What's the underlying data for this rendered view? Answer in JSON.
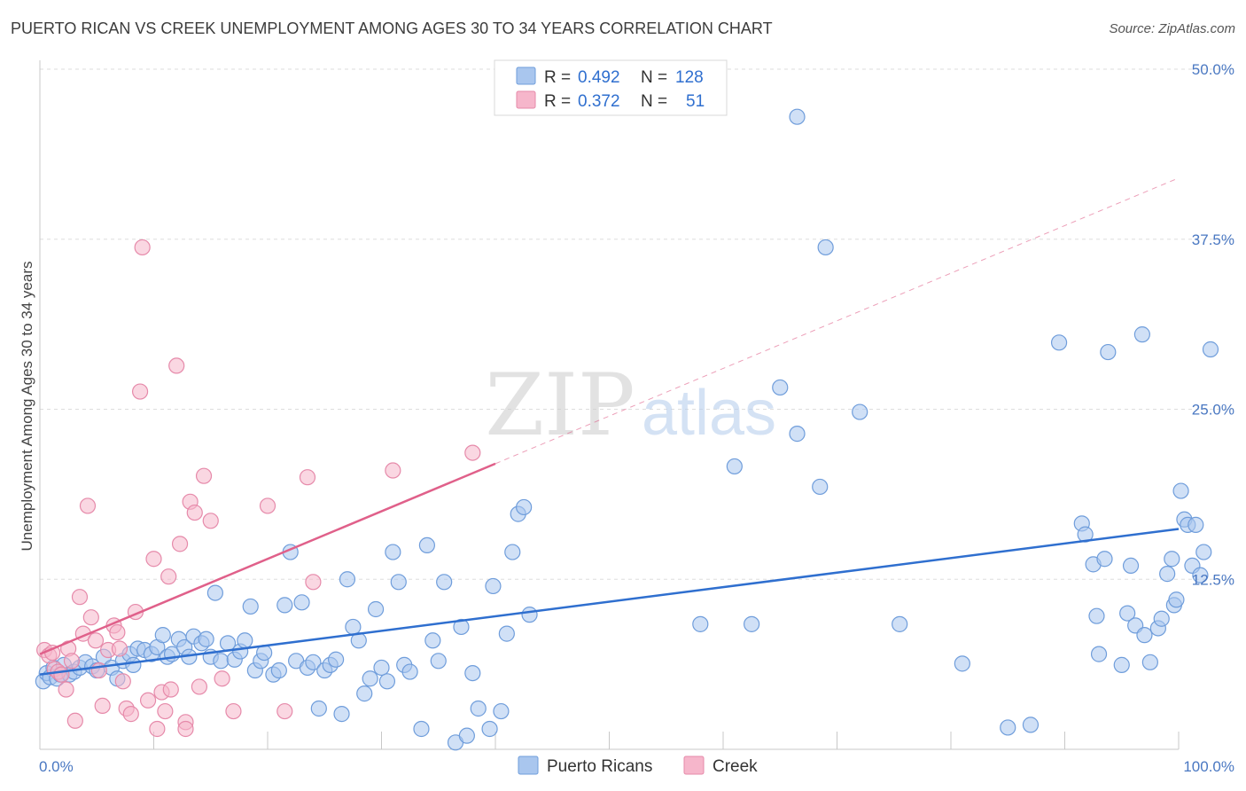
{
  "title": "PUERTO RICAN VS CREEK UNEMPLOYMENT AMONG AGES 30 TO 34 YEARS CORRELATION CHART",
  "source": "Source: ZipAtlas.com",
  "watermark": {
    "zip": "ZIP",
    "atlas": "atlas"
  },
  "colors": {
    "blue_fill": "#a9c6ee",
    "blue_stroke": "#6f9ddb",
    "blue_line": "#2f6fcf",
    "pink_fill": "#f6b6cb",
    "pink_stroke": "#e68aaa",
    "pink_line": "#e0608a",
    "axis_text": "#4a78c2",
    "grid": "#dddddd"
  },
  "chart_data": {
    "type": "scatter",
    "title": "PUERTO RICAN VS CREEK UNEMPLOYMENT AMONG AGES 30 TO 34 YEARS CORRELATION CHART",
    "xlabel": "",
    "ylabel": "Unemployment Among Ages 30 to 34 years",
    "xlim": [
      0,
      100
    ],
    "ylim": [
      0,
      50
    ],
    "x_tick_labels": [
      "0.0%",
      "100.0%"
    ],
    "y_ticks": [
      {
        "value": 50,
        "label": "50.0%"
      },
      {
        "value": 37.5,
        "label": "37.5%"
      },
      {
        "value": 25,
        "label": "25.0%"
      },
      {
        "value": 12.5,
        "label": "12.5%"
      }
    ],
    "grid": true,
    "legend": {
      "placement": "top-center",
      "entries": [
        {
          "r_label": "R =",
          "r": "0.492",
          "n_label": "N =",
          "n": "128"
        },
        {
          "r_label": "R =",
          "r": "0.372",
          "n_label": "N =",
          "n": "51"
        }
      ]
    },
    "bottom_legend": [
      "Puerto Ricans",
      "Creek"
    ],
    "series": [
      {
        "name": "Puerto Ricans",
        "color": "blue",
        "trend": {
          "x0": 0,
          "y0": 5.5,
          "x1": 100,
          "y1": 16.2
        },
        "points": [
          [
            0.3,
            5.0
          ],
          [
            0.6,
            5.6
          ],
          [
            0.9,
            5.3
          ],
          [
            1.2,
            6.0
          ],
          [
            1.5,
            5.2
          ],
          [
            1.8,
            5.5
          ],
          [
            2.1,
            6.2
          ],
          [
            2.6,
            5.5
          ],
          [
            3.0,
            5.7
          ],
          [
            3.5,
            6.0
          ],
          [
            4.0,
            6.4
          ],
          [
            4.6,
            6.1
          ],
          [
            5.0,
            5.8
          ],
          [
            5.6,
            6.8
          ],
          [
            6.3,
            6.0
          ],
          [
            6.8,
            5.2
          ],
          [
            7.3,
            6.5
          ],
          [
            7.9,
            7.0
          ],
          [
            8.2,
            6.2
          ],
          [
            8.6,
            7.4
          ],
          [
            9.2,
            7.3
          ],
          [
            9.8,
            7.0
          ],
          [
            10.3,
            7.5
          ],
          [
            10.8,
            8.4
          ],
          [
            11.2,
            6.8
          ],
          [
            11.6,
            7.0
          ],
          [
            12.2,
            8.1
          ],
          [
            12.7,
            7.5
          ],
          [
            13.1,
            6.8
          ],
          [
            13.5,
            8.3
          ],
          [
            14.2,
            7.8
          ],
          [
            14.6,
            8.1
          ],
          [
            15.0,
            6.8
          ],
          [
            15.4,
            11.5
          ],
          [
            15.9,
            6.5
          ],
          [
            16.5,
            7.8
          ],
          [
            17.1,
            6.6
          ],
          [
            17.6,
            7.2
          ],
          [
            18.0,
            8.0
          ],
          [
            18.5,
            10.5
          ],
          [
            18.9,
            5.8
          ],
          [
            19.4,
            6.5
          ],
          [
            19.7,
            7.1
          ],
          [
            20.5,
            5.5
          ],
          [
            21.0,
            5.8
          ],
          [
            21.5,
            10.6
          ],
          [
            22.0,
            14.5
          ],
          [
            22.5,
            6.5
          ],
          [
            23.0,
            10.8
          ],
          [
            23.5,
            6.0
          ],
          [
            24.0,
            6.4
          ],
          [
            24.5,
            3.0
          ],
          [
            25.0,
            5.8
          ],
          [
            25.5,
            6.2
          ],
          [
            26.0,
            6.6
          ],
          [
            26.5,
            2.6
          ],
          [
            27.0,
            12.5
          ],
          [
            27.5,
            9.0
          ],
          [
            28.0,
            8.0
          ],
          [
            28.5,
            4.1
          ],
          [
            29.0,
            5.2
          ],
          [
            29.5,
            10.3
          ],
          [
            30.0,
            6.0
          ],
          [
            30.5,
            5.0
          ],
          [
            31.0,
            14.5
          ],
          [
            31.5,
            12.3
          ],
          [
            32.0,
            6.2
          ],
          [
            32.5,
            5.7
          ],
          [
            33.5,
            1.5
          ],
          [
            34.0,
            15.0
          ],
          [
            34.5,
            8.0
          ],
          [
            35.0,
            6.5
          ],
          [
            35.5,
            12.3
          ],
          [
            36.5,
            0.5
          ],
          [
            37.0,
            9.0
          ],
          [
            37.5,
            1.0
          ],
          [
            38.0,
            5.6
          ],
          [
            38.5,
            3.0
          ],
          [
            39.5,
            1.5
          ],
          [
            39.8,
            12.0
          ],
          [
            40.5,
            2.8
          ],
          [
            41.0,
            8.5
          ],
          [
            41.5,
            14.5
          ],
          [
            42.0,
            17.3
          ],
          [
            42.5,
            17.8
          ],
          [
            43.0,
            9.9
          ],
          [
            58.0,
            9.2
          ],
          [
            61.0,
            20.8
          ],
          [
            65.0,
            26.6
          ],
          [
            66.5,
            23.2
          ],
          [
            66.5,
            46.5
          ],
          [
            68.5,
            19.3
          ],
          [
            69.0,
            36.9
          ],
          [
            72.0,
            24.8
          ],
          [
            75.5,
            9.2
          ],
          [
            81.0,
            6.3
          ],
          [
            85.0,
            1.6
          ],
          [
            87.0,
            1.8
          ],
          [
            89.5,
            29.9
          ],
          [
            91.5,
            16.6
          ],
          [
            91.8,
            15.8
          ],
          [
            92.5,
            13.6
          ],
          [
            92.8,
            9.8
          ],
          [
            93.0,
            7.0
          ],
          [
            93.5,
            14.0
          ],
          [
            93.8,
            29.2
          ],
          [
            95.0,
            6.2
          ],
          [
            95.5,
            10.0
          ],
          [
            95.8,
            13.5
          ],
          [
            96.2,
            9.1
          ],
          [
            96.8,
            30.5
          ],
          [
            97.0,
            8.4
          ],
          [
            97.5,
            6.4
          ],
          [
            98.2,
            8.9
          ],
          [
            98.5,
            9.6
          ],
          [
            99.0,
            12.9
          ],
          [
            99.4,
            14.0
          ],
          [
            99.6,
            10.6
          ],
          [
            99.8,
            11.0
          ],
          [
            100.2,
            19.0
          ],
          [
            100.5,
            16.9
          ],
          [
            100.8,
            16.5
          ],
          [
            101.2,
            13.5
          ],
          [
            101.5,
            16.5
          ],
          [
            101.9,
            12.8
          ],
          [
            102.2,
            14.5
          ],
          [
            102.8,
            29.4
          ],
          [
            62.5,
            9.2
          ]
        ]
      },
      {
        "name": "Creek",
        "color": "pink",
        "trend": {
          "x0": 0,
          "y0": 7.0,
          "x1": 40,
          "y1": 21.0,
          "extension": {
            "x1": 100,
            "y1": 42.0
          }
        },
        "points": [
          [
            0.4,
            7.3
          ],
          [
            0.8,
            6.9
          ],
          [
            1.1,
            7.1
          ],
          [
            1.3,
            5.9
          ],
          [
            1.6,
            5.7
          ],
          [
            1.9,
            5.5
          ],
          [
            2.3,
            4.4
          ],
          [
            2.5,
            7.4
          ],
          [
            2.8,
            6.5
          ],
          [
            3.1,
            2.1
          ],
          [
            3.5,
            11.2
          ],
          [
            3.8,
            8.5
          ],
          [
            4.2,
            17.9
          ],
          [
            4.5,
            9.7
          ],
          [
            4.9,
            8.0
          ],
          [
            5.2,
            5.8
          ],
          [
            5.5,
            3.2
          ],
          [
            6.0,
            7.3
          ],
          [
            6.5,
            9.1
          ],
          [
            6.8,
            8.6
          ],
          [
            7.0,
            7.4
          ],
          [
            7.3,
            5.0
          ],
          [
            7.6,
            3.0
          ],
          [
            8.0,
            2.6
          ],
          [
            8.4,
            10.1
          ],
          [
            8.8,
            26.3
          ],
          [
            9.0,
            36.9
          ],
          [
            9.5,
            3.6
          ],
          [
            10.0,
            14.0
          ],
          [
            10.3,
            1.5
          ],
          [
            10.7,
            4.2
          ],
          [
            11.0,
            2.8
          ],
          [
            11.3,
            12.7
          ],
          [
            11.5,
            4.4
          ],
          [
            12.0,
            28.2
          ],
          [
            12.3,
            15.1
          ],
          [
            12.8,
            2.0
          ],
          [
            13.2,
            18.2
          ],
          [
            13.6,
            17.4
          ],
          [
            14.0,
            4.6
          ],
          [
            14.4,
            20.1
          ],
          [
            15.0,
            16.8
          ],
          [
            16.0,
            5.2
          ],
          [
            17.0,
            2.8
          ],
          [
            20.0,
            17.9
          ],
          [
            21.5,
            2.8
          ],
          [
            23.5,
            20.0
          ],
          [
            24.0,
            12.3
          ],
          [
            31.0,
            20.5
          ],
          [
            38.0,
            21.8
          ],
          [
            12.8,
            1.5
          ]
        ]
      }
    ]
  }
}
